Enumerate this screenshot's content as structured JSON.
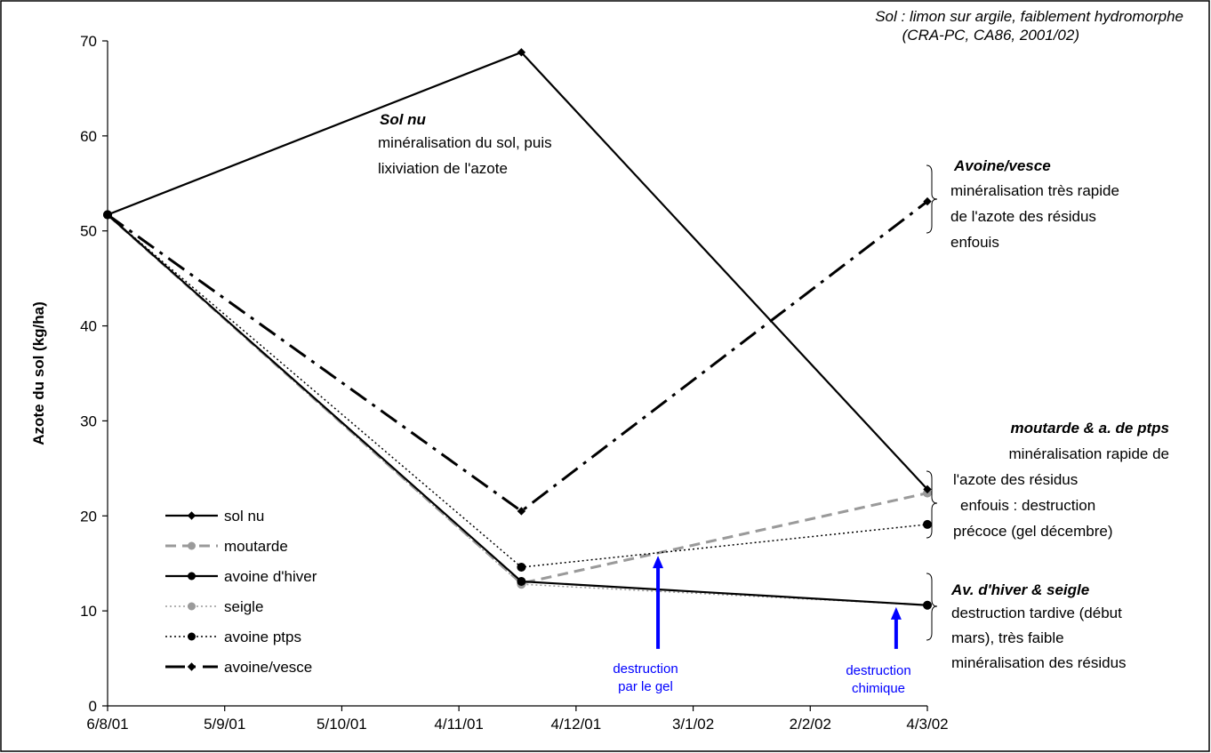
{
  "chart_data": {
    "type": "line",
    "ylabel": "Azote du sol (kg/ha)",
    "xlabel": "",
    "ylim": [
      0,
      70
    ],
    "yticks": [
      0,
      10,
      20,
      30,
      40,
      50,
      60,
      70
    ],
    "xlim": [
      "2001-08-06",
      "2002-03-04"
    ],
    "xticks": [
      "6/8/01",
      "5/9/01",
      "5/10/01",
      "4/11/01",
      "4/12/01",
      "3/1/02",
      "2/2/02",
      "4/3/02"
    ],
    "x": [
      "2001-08-06",
      "2001-11-20",
      "2002-03-04"
    ],
    "grid": false,
    "legend": "bottom-left",
    "series": [
      {
        "name": "sol nu",
        "values": [
          51.7,
          68.8,
          22.8
        ],
        "color": "#000000",
        "style": "solid",
        "marker": "diamond"
      },
      {
        "name": "moutarde",
        "values": [
          51.7,
          12.9,
          22.4
        ],
        "color": "#9a9a9a",
        "style": "dashed",
        "marker": "circle"
      },
      {
        "name": "avoine d'hiver",
        "values": [
          51.7,
          13.1,
          10.6
        ],
        "color": "#000000",
        "style": "solid",
        "marker": "circle"
      },
      {
        "name": "seigle",
        "values": [
          51.7,
          12.8,
          10.6
        ],
        "color": "#9a9a9a",
        "style": "dotted",
        "marker": "circle"
      },
      {
        "name": "avoine ptps",
        "values": [
          51.7,
          14.6,
          19.1
        ],
        "color": "#000000",
        "style": "dotted",
        "marker": "circle"
      },
      {
        "name": "avoine/vesce",
        "values": [
          51.7,
          20.5,
          53.1
        ],
        "color": "#000000",
        "style": "dashdot",
        "marker": "diamond"
      }
    ],
    "source_note": {
      "line1": "Sol : limon sur argile, faiblement hydromorphe",
      "line2": "(CRA-PC, CA86, 2001/02)"
    },
    "annotations": {
      "sol_nu": {
        "title": "Sol nu",
        "line1": "minéralisation du sol, puis",
        "line2": "lixiviation de l'azote"
      },
      "avoine_vesce": {
        "title": "Avoine/vesce",
        "line1": "minéralisation très rapide",
        "line2": "de l'azote des résidus",
        "line3": "enfouis"
      },
      "moutarde_ptps": {
        "title": "moutarde & a. de ptps",
        "line1": "minéralisation rapide de",
        "line2": "l'azote des résidus",
        "line3": "enfouis : destruction",
        "line4": "précoce (gel décembre)"
      },
      "hiver_seigle": {
        "title": "Av. d'hiver & seigle",
        "line1": "destruction tardive (début",
        "line2": "mars), très faible",
        "line3": "minéralisation des résidus"
      },
      "gel": {
        "line1": "destruction",
        "line2": "par le gel",
        "x": "2001-12-25",
        "y_from": 6,
        "y_to": 15.8
      },
      "chimique": {
        "line1": "destruction",
        "line2": "chimique",
        "x": "2002-02-24",
        "y_from": 6,
        "y_to": 10.4
      }
    },
    "arrow_color": "#0000ff"
  }
}
